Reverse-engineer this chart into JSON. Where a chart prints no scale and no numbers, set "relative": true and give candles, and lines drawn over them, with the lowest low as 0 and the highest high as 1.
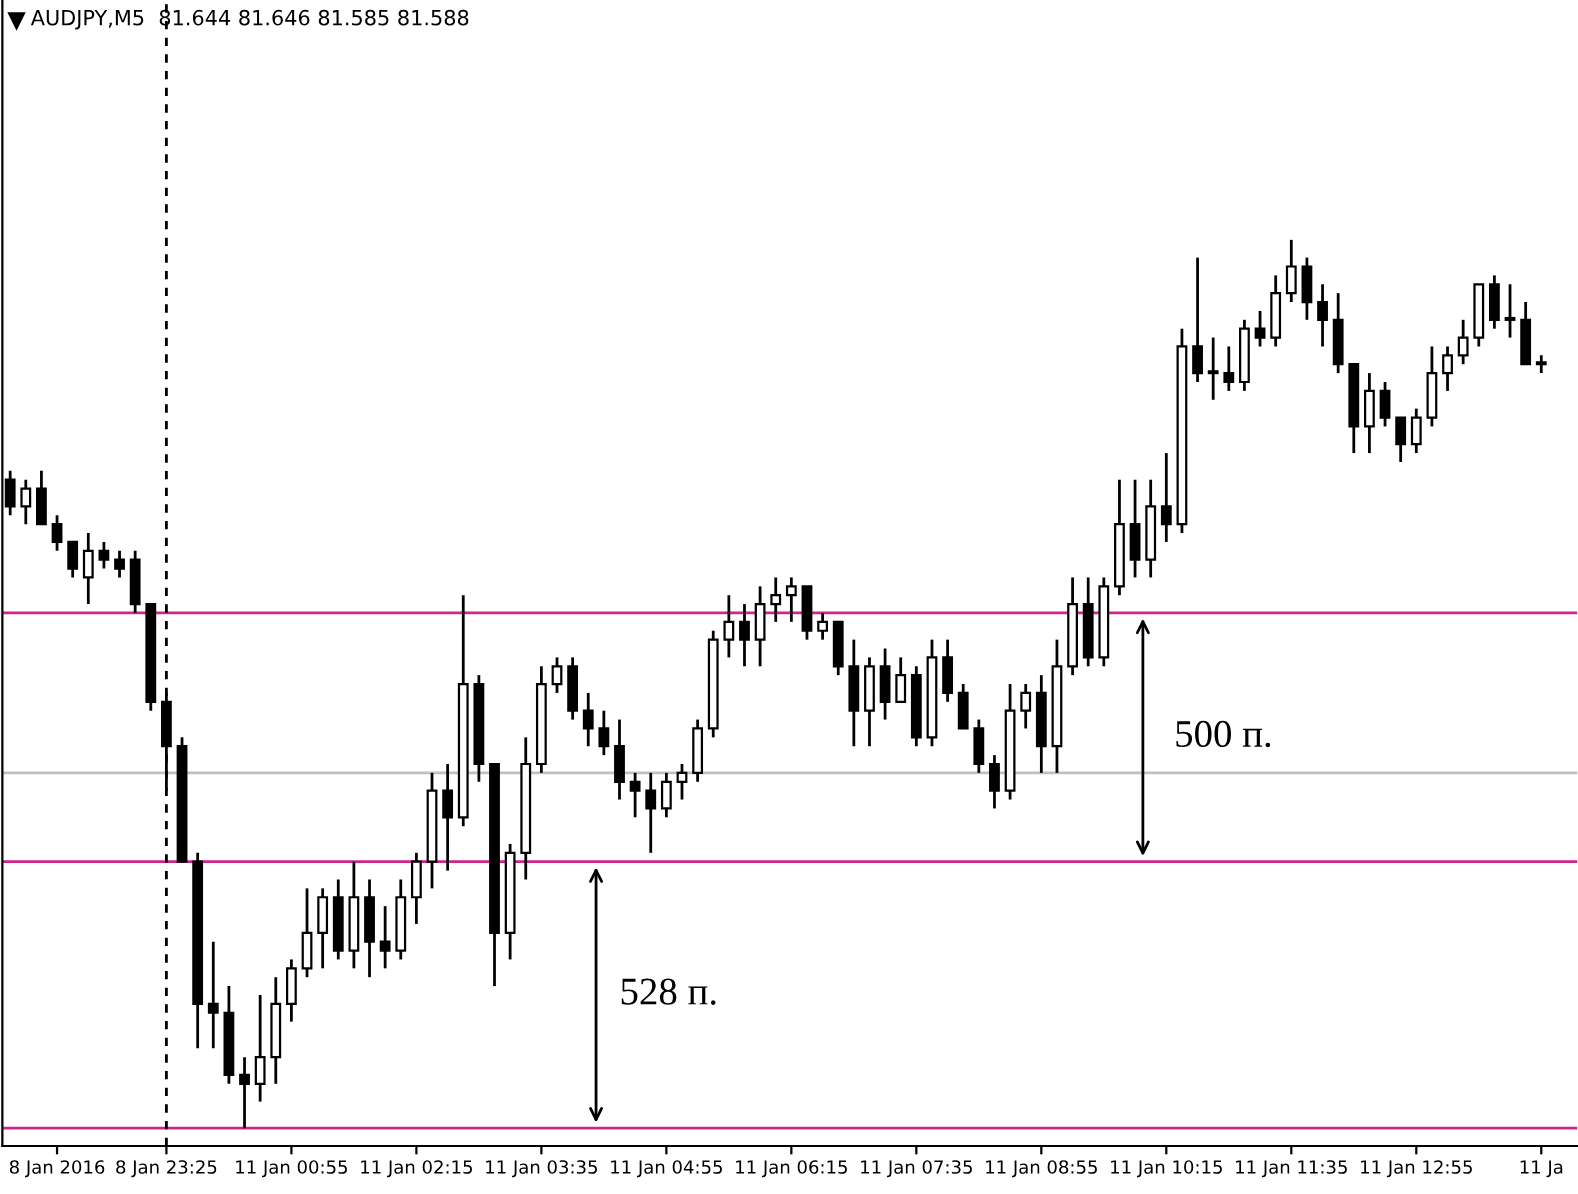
{
  "chart_data": {
    "type": "candlestick",
    "title": "AUDJPY,M5  81.644 81.646 81.585 81.588",
    "relative": true,
    "grid": false,
    "legend": false,
    "categories": [
      null,
      null,
      null,
      "8 Jan 2016",
      null,
      null,
      null,
      null,
      null,
      null,
      "8 Jan 23:25",
      null,
      null,
      null,
      null,
      null,
      null,
      null,
      "11 Jan 00:55",
      null,
      null,
      null,
      null,
      null,
      null,
      null,
      "11 Jan 02:15",
      null,
      null,
      null,
      null,
      null,
      null,
      null,
      "11 Jan 03:35",
      null,
      null,
      null,
      null,
      null,
      null,
      null,
      "11 Jan 04:55",
      null,
      null,
      null,
      null,
      null,
      null,
      null,
      "11 Jan 06:15",
      null,
      null,
      null,
      null,
      null,
      null,
      null,
      "11 Jan 07:35",
      null,
      null,
      null,
      null,
      null,
      null,
      null,
      "11 Jan 08:55",
      null,
      null,
      null,
      null,
      null,
      null,
      null,
      "11 Jan 10:15",
      null,
      null,
      null,
      null,
      null,
      null,
      null,
      "11 Jan 11:35",
      null,
      null,
      null,
      null,
      null,
      null,
      null,
      "11 Jan 12:55",
      null,
      null,
      null,
      null,
      null,
      null,
      null,
      "11 Ja"
    ],
    "ohlc": [
      [
        0.73,
        0.74,
        0.69,
        0.7
      ],
      [
        0.7,
        0.73,
        0.68,
        0.72
      ],
      [
        0.72,
        0.74,
        0.68,
        0.68
      ],
      [
        0.68,
        0.69,
        0.65,
        0.66
      ],
      [
        0.66,
        0.66,
        0.62,
        0.63
      ],
      [
        0.62,
        0.67,
        0.59,
        0.65
      ],
      [
        0.65,
        0.66,
        0.63,
        0.64
      ],
      [
        0.64,
        0.65,
        0.62,
        0.63
      ],
      [
        0.64,
        0.65,
        0.58,
        0.59
      ],
      [
        0.59,
        0.59,
        0.47,
        0.48
      ],
      [
        0.48,
        0.49,
        0.38,
        0.43
      ],
      [
        0.43,
        0.44,
        0.3,
        0.3
      ],
      [
        0.3,
        0.31,
        0.09,
        0.14
      ],
      [
        0.14,
        0.21,
        0.09,
        0.13
      ],
      [
        0.13,
        0.16,
        0.05,
        0.06
      ],
      [
        0.06,
        0.08,
        0,
        0.05
      ],
      [
        0.05,
        0.15,
        0.03,
        0.08
      ],
      [
        0.08,
        0.17,
        0.05,
        0.14
      ],
      [
        0.14,
        0.19,
        0.12,
        0.18
      ],
      [
        0.18,
        0.27,
        0.17,
        0.22
      ],
      [
        0.22,
        0.27,
        0.18,
        0.26
      ],
      [
        0.26,
        0.28,
        0.19,
        0.2
      ],
      [
        0.2,
        0.3,
        0.18,
        0.26
      ],
      [
        0.26,
        0.28,
        0.17,
        0.21
      ],
      [
        0.21,
        0.25,
        0.18,
        0.2
      ],
      [
        0.2,
        0.28,
        0.19,
        0.26
      ],
      [
        0.26,
        0.31,
        0.23,
        0.3
      ],
      [
        0.3,
        0.4,
        0.27,
        0.38
      ],
      [
        0.38,
        0.41,
        0.29,
        0.35
      ],
      [
        0.35,
        0.6,
        0.34,
        0.5
      ],
      [
        0.5,
        0.51,
        0.39,
        0.41
      ],
      [
        0.41,
        0.41,
        0.16,
        0.22
      ],
      [
        0.22,
        0.32,
        0.19,
        0.31
      ],
      [
        0.31,
        0.44,
        0.28,
        0.41
      ],
      [
        0.41,
        0.52,
        0.4,
        0.5
      ],
      [
        0.5,
        0.53,
        0.49,
        0.52
      ],
      [
        0.52,
        0.53,
        0.46,
        0.47
      ],
      [
        0.47,
        0.49,
        0.43,
        0.45
      ],
      [
        0.45,
        0.47,
        0.42,
        0.43
      ],
      [
        0.43,
        0.46,
        0.37,
        0.39
      ],
      [
        0.39,
        0.4,
        0.35,
        0.38
      ],
      [
        0.38,
        0.4,
        0.31,
        0.36
      ],
      [
        0.36,
        0.4,
        0.35,
        0.39
      ],
      [
        0.39,
        0.41,
        0.37,
        0.4
      ],
      [
        0.4,
        0.46,
        0.39,
        0.45
      ],
      [
        0.45,
        0.56,
        0.44,
        0.55
      ],
      [
        0.55,
        0.6,
        0.53,
        0.57
      ],
      [
        0.57,
        0.59,
        0.52,
        0.55
      ],
      [
        0.55,
        0.61,
        0.52,
        0.59
      ],
      [
        0.59,
        0.62,
        0.57,
        0.6
      ],
      [
        0.6,
        0.62,
        0.57,
        0.61
      ],
      [
        0.61,
        0.61,
        0.55,
        0.56
      ],
      [
        0.56,
        0.58,
        0.55,
        0.57
      ],
      [
        0.57,
        0.57,
        0.51,
        0.52
      ],
      [
        0.52,
        0.55,
        0.43,
        0.47
      ],
      [
        0.47,
        0.53,
        0.43,
        0.52
      ],
      [
        0.52,
        0.54,
        0.46,
        0.48
      ],
      [
        0.48,
        0.53,
        0.48,
        0.51
      ],
      [
        0.51,
        0.52,
        0.43,
        0.44
      ],
      [
        0.44,
        0.55,
        0.43,
        0.53
      ],
      [
        0.53,
        0.55,
        0.48,
        0.49
      ],
      [
        0.49,
        0.5,
        0.45,
        0.45
      ],
      [
        0.45,
        0.46,
        0.4,
        0.41
      ],
      [
        0.41,
        0.42,
        0.36,
        0.38
      ],
      [
        0.38,
        0.5,
        0.37,
        0.47
      ],
      [
        0.47,
        0.5,
        0.45,
        0.49
      ],
      [
        0.49,
        0.51,
        0.4,
        0.43
      ],
      [
        0.43,
        0.55,
        0.4,
        0.52
      ],
      [
        0.52,
        0.62,
        0.51,
        0.59
      ],
      [
        0.59,
        0.62,
        0.52,
        0.53
      ],
      [
        0.53,
        0.62,
        0.52,
        0.61
      ],
      [
        0.61,
        0.73,
        0.6,
        0.68
      ],
      [
        0.68,
        0.73,
        0.62,
        0.64
      ],
      [
        0.64,
        0.73,
        0.62,
        0.7
      ],
      [
        0.7,
        0.76,
        0.66,
        0.68
      ],
      [
        0.68,
        0.9,
        0.67,
        0.88
      ],
      [
        0.88,
        0.98,
        0.84,
        0.85
      ],
      [
        0.85,
        0.89,
        0.82,
        0.85
      ],
      [
        0.85,
        0.88,
        0.83,
        0.84
      ],
      [
        0.84,
        0.91,
        0.83,
        0.9
      ],
      [
        0.9,
        0.92,
        0.88,
        0.89
      ],
      [
        0.89,
        0.96,
        0.88,
        0.94
      ],
      [
        0.94,
        1,
        0.93,
        0.97
      ],
      [
        0.97,
        0.98,
        0.91,
        0.93
      ],
      [
        0.93,
        0.95,
        0.88,
        0.91
      ],
      [
        0.91,
        0.94,
        0.85,
        0.86
      ],
      [
        0.86,
        0.86,
        0.76,
        0.79
      ],
      [
        0.79,
        0.85,
        0.76,
        0.83
      ],
      [
        0.83,
        0.84,
        0.79,
        0.8
      ],
      [
        0.8,
        0.8,
        0.75,
        0.77
      ],
      [
        0.77,
        0.81,
        0.76,
        0.8
      ],
      [
        0.8,
        0.88,
        0.79,
        0.85
      ],
      [
        0.85,
        0.88,
        0.83,
        0.87
      ],
      [
        0.87,
        0.91,
        0.86,
        0.89
      ],
      [
        0.89,
        0.95,
        0.88,
        0.95
      ],
      [
        0.95,
        0.96,
        0.9,
        0.91
      ],
      [
        0.91,
        0.95,
        0.89,
        0.91
      ],
      [
        0.91,
        0.93,
        0.86,
        0.86
      ],
      [
        0.86,
        0.87,
        0.85,
        0.86
      ]
    ],
    "ref_lines": [
      {
        "axis": "y",
        "value": 0.58,
        "color": "#d0268c"
      },
      {
        "axis": "y",
        "value": 0.3,
        "color": "#d0268c"
      },
      {
        "axis": "y",
        "value": 0,
        "color": "#d0268c"
      },
      {
        "axis": "y",
        "value": 0.4,
        "color": "#c0c0c0"
      },
      {
        "axis": "x",
        "value": "8 Jan 23:25",
        "color": "#000000",
        "line_style": "dashed"
      }
    ],
    "annotations": [
      "500 п.",
      "528 п."
    ]
  }
}
